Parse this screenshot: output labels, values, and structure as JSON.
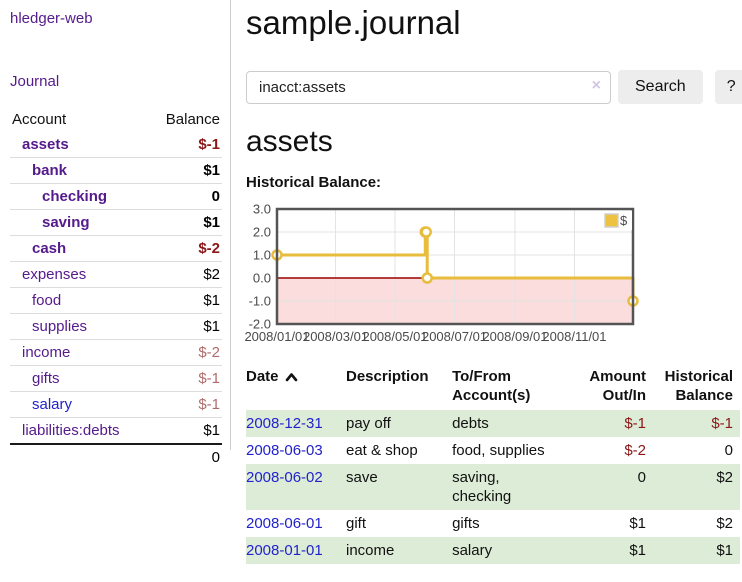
{
  "sidebar": {
    "brand": "hledger-web",
    "journal_link": "Journal",
    "accounts_table": {
      "account_header": "Account",
      "balance_header": "Balance",
      "rows": [
        {
          "name": "assets",
          "depth": 0,
          "name_style": "bold-purple",
          "balance": "$-1",
          "balance_style": "bold-neg"
        },
        {
          "name": "bank",
          "depth": 1,
          "name_style": "bold-purple",
          "balance": "$1",
          "balance_style": "bold"
        },
        {
          "name": "checking",
          "depth": 2,
          "name_style": "bold-purple",
          "balance": "0",
          "balance_style": "bold"
        },
        {
          "name": "saving",
          "depth": 2,
          "name_style": "bold-purple",
          "balance": "$1",
          "balance_style": "bold"
        },
        {
          "name": "cash",
          "depth": 1,
          "name_style": "bold-purple",
          "balance": "$-2",
          "balance_style": "bold-neg"
        },
        {
          "name": "expenses",
          "depth": 0,
          "name_style": "purple",
          "balance": "$2",
          "balance_style": "plain"
        },
        {
          "name": "food",
          "depth": 1,
          "name_style": "purple",
          "balance": "$1",
          "balance_style": "plain"
        },
        {
          "name": "supplies",
          "depth": 1,
          "name_style": "purple",
          "balance": "$1",
          "balance_style": "plain"
        },
        {
          "name": "income",
          "depth": 0,
          "name_style": "purple",
          "balance": "$-2",
          "balance_style": "soft-neg"
        },
        {
          "name": "gifts",
          "depth": 1,
          "name_style": "purple",
          "balance": "$-1",
          "balance_style": "soft-neg"
        },
        {
          "name": "salary",
          "depth": 1,
          "name_style": "blue",
          "balance": "$-1",
          "balance_style": "soft-neg"
        },
        {
          "name": "liabilities:debts",
          "depth": 0,
          "name_style": "purple",
          "balance": "$1",
          "balance_style": "plain"
        }
      ],
      "total": "0"
    }
  },
  "main": {
    "title": "sample.journal",
    "search": {
      "query": "inacct:assets",
      "clear_icon": "×",
      "search_button": "Search",
      "help_button": "?"
    },
    "account_heading": "assets",
    "chart_label": "Historical Balance:"
  },
  "chart_data": {
    "type": "line",
    "title": "Historical Balance",
    "step": true,
    "series": [
      {
        "name": "$",
        "color": "#E8BC3C",
        "points": [
          [
            "2008-01-01",
            1
          ],
          [
            "2008-06-01",
            2
          ],
          [
            "2008-06-02",
            2
          ],
          [
            "2008-06-03",
            0
          ],
          [
            "2008-12-31",
            -1
          ]
        ]
      }
    ],
    "x_range": [
      "2008-01-01",
      "2008-12-31"
    ],
    "ylim": [
      -2,
      3
    ],
    "yticks": [
      3.0,
      2.0,
      1.0,
      0.0,
      -1.0,
      -2.0
    ],
    "xtick_labels": [
      "2008/01/01",
      "2008/03/01",
      "2008/05/01",
      "2008/07/01",
      "2008/09/01",
      "2008/11/01"
    ],
    "legend_position": "top-right",
    "legend_label": "$",
    "grid": true,
    "negative_region_fill": "#fbdddd",
    "zero_line_color": "#990000",
    "border_color": "#545454",
    "grid_color": "#e3e3e3"
  },
  "register": {
    "headers": {
      "date": "Date",
      "description": "Description",
      "accounts": "To/From Account(s)",
      "amount": "Amount Out/In",
      "balance": "Historical Balance"
    },
    "rows": [
      {
        "date": "2008-12-31",
        "description": "pay off",
        "accounts": "debts",
        "amount": "$-1",
        "amount_neg": true,
        "balance": "$-1",
        "balance_neg": true
      },
      {
        "date": "2008-06-03",
        "description": "eat & shop",
        "accounts": "food, supplies",
        "amount": "$-2",
        "amount_neg": true,
        "balance": "0",
        "balance_neg": false
      },
      {
        "date": "2008-06-02",
        "description": "save",
        "accounts": "saving, checking",
        "amount": "0",
        "amount_neg": false,
        "balance": "$2",
        "balance_neg": false
      },
      {
        "date": "2008-06-01",
        "description": "gift",
        "accounts": "gifts",
        "amount": "$1",
        "amount_neg": false,
        "balance": "$2",
        "balance_neg": false
      },
      {
        "date": "2008-01-01",
        "description": "income",
        "accounts": "salary",
        "amount": "$1",
        "amount_neg": false,
        "balance": "$1",
        "balance_neg": false
      }
    ]
  },
  "colors": {
    "link_purple": "#551a8b",
    "link_blue": "#2222cc",
    "negative_strong": "#8b1717",
    "negative_soft": "#b26b6b",
    "row_stripe_green": "#ddecd7",
    "series_yellow": "#E8BC3C"
  }
}
